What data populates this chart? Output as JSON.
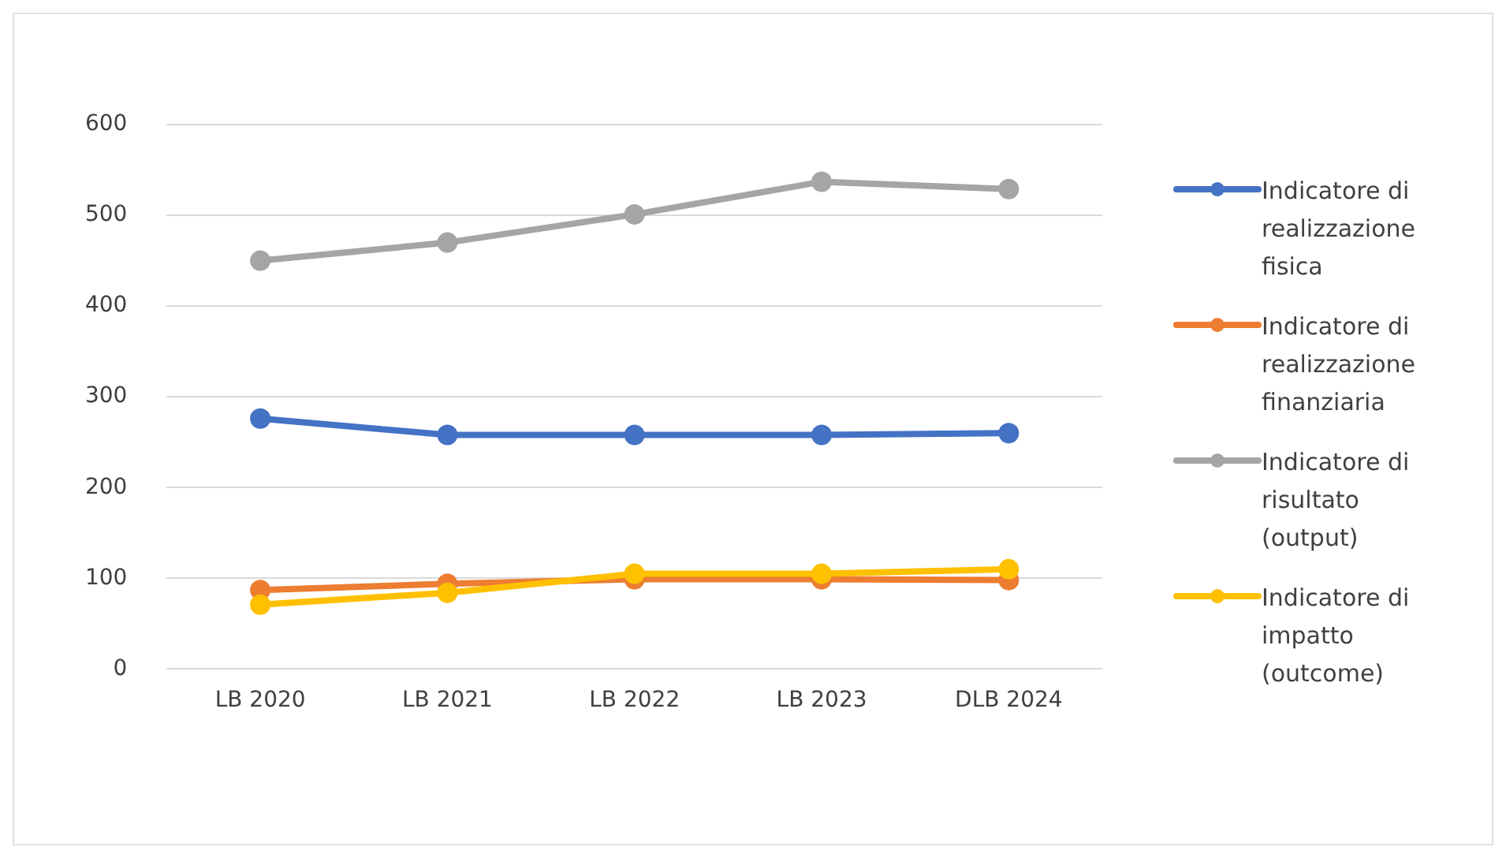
{
  "chart_data": {
    "type": "line",
    "categories": [
      "LB 2020",
      "LB 2021",
      "LB 2022",
      "LB 2023",
      "DLB 2024"
    ],
    "series": [
      {
        "name": "Indicatore di realizzazione fisica",
        "color": "#4472c4",
        "values": [
          276,
          258,
          258,
          258,
          260
        ]
      },
      {
        "name": "Indicatore di realizzazione finanziaria",
        "color": "#ed7d31",
        "values": [
          87,
          94,
          99,
          99,
          98
        ]
      },
      {
        "name": "Indicatore di risultato (output)",
        "color": "#a5a5a5",
        "values": [
          450,
          470,
          501,
          537,
          529
        ]
      },
      {
        "name": "Indicatore di impatto (outcome)",
        "color": "#ffc000",
        "values": [
          71,
          84,
          105,
          105,
          110
        ]
      }
    ],
    "ylim": [
      0,
      600
    ],
    "yticks": [
      0,
      100,
      200,
      300,
      400,
      500,
      600
    ],
    "grid": "y",
    "legend": "right",
    "marker": "circle",
    "line_style": "solid"
  }
}
